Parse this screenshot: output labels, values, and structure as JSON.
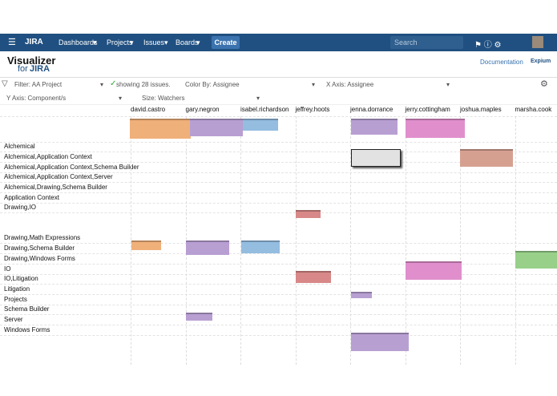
{
  "nav": {
    "brand": "JIRA",
    "items": [
      "Dashboards",
      "Projects",
      "Issues",
      "Boards"
    ],
    "create": "Create",
    "search": "Search"
  },
  "header": {
    "logo": "Visualizer",
    "logo_for": "for",
    "logo_jira": "JIRA",
    "documentation": "Documentation",
    "vendor": "Expium"
  },
  "controls": {
    "filter": "Filter: AA Project",
    "count": "showing 28 issues.",
    "color_by": "Color By: Assignee",
    "x_axis": "X Axis: Assignee",
    "y_axis": "Y Axis: Component/s",
    "size": "Size: Watchers"
  },
  "columns": [
    "david.castro",
    "gary.negron",
    "isabel.richardson",
    "jeffrey.hoots",
    "jenna.dorrance",
    "jerry.cottingham",
    "joshua.maples",
    "marsha.cook"
  ],
  "rows": [
    "Alchemical",
    "Alchemical,Application Context",
    "Alchemical,Application Context,Schema Builder",
    "Alchemical,Application Context,Server",
    "Alchemical,Drawing,Schema Builder",
    "Application Context",
    "Drawing,IO",
    "Drawing,Math Expressions",
    "Drawing,Schema Builder",
    "Drawing,Windows Forms",
    "IO",
    "IO,Litigation",
    "Litigation",
    "Projects",
    "Schema Builder",
    "Server",
    "Windows Forms"
  ]
}
